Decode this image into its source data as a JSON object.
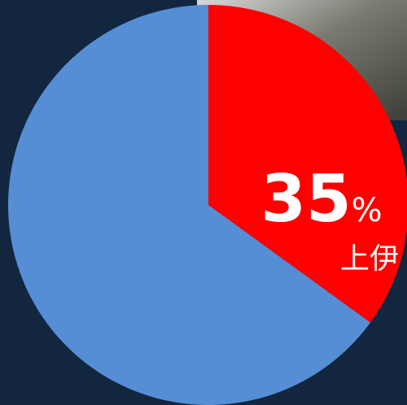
{
  "chart_data": {
    "type": "pie",
    "values": [
      35,
      65
    ],
    "value_labels": [
      "35%",
      null
    ],
    "colors": [
      "#ff0000",
      "#558ed5"
    ],
    "annotation": "上伊"
  }
}
